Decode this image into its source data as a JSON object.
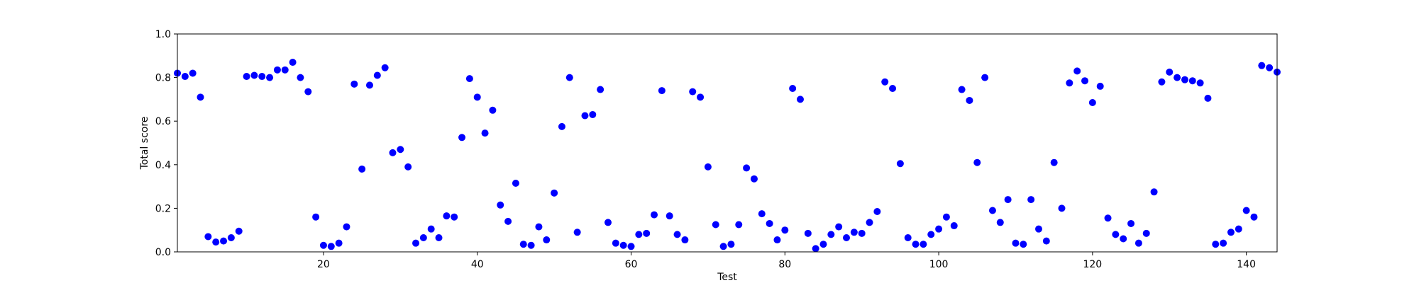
{
  "chart_data": {
    "type": "scatter",
    "xlabel": "Test",
    "ylabel": "Total score",
    "xlim": [
      1,
      144
    ],
    "ylim": [
      0.0,
      1.0
    ],
    "x_ticks": [
      20,
      40,
      60,
      80,
      100,
      120,
      140
    ],
    "x_tick_labels": [
      "20",
      "40",
      "60",
      "80",
      "100",
      "120",
      "140"
    ],
    "y_ticks": [
      0.0,
      0.2,
      0.4,
      0.6,
      0.8,
      1.0
    ],
    "y_tick_labels": [
      "0.0",
      "0.2",
      "0.4",
      "0.6",
      "0.8",
      "1.0"
    ],
    "grid": false,
    "marker_color": "#0000ff",
    "series": [
      {
        "x": [
          1,
          2,
          3,
          4,
          5,
          6,
          7,
          8,
          9,
          10,
          11,
          12,
          13,
          14,
          15,
          16,
          17,
          18,
          19,
          20,
          21,
          22,
          23,
          24,
          25,
          26,
          27,
          28,
          29,
          30,
          31,
          32,
          33,
          34,
          35,
          36,
          37,
          38,
          39,
          40,
          41,
          42,
          43,
          44,
          45,
          46,
          47,
          48,
          49,
          50,
          51,
          52,
          53,
          54,
          55,
          56,
          57,
          58,
          59,
          60,
          61,
          62,
          63,
          64,
          65,
          66,
          67,
          68,
          69,
          70,
          71,
          72,
          73,
          74,
          75,
          76,
          77,
          78,
          79,
          80,
          81,
          82,
          83,
          84,
          85,
          86,
          87,
          88,
          89,
          90,
          91,
          92,
          93,
          94,
          95,
          96,
          97,
          98,
          99,
          100,
          101,
          102,
          103,
          104,
          105,
          106,
          107,
          108,
          109,
          110,
          111,
          112,
          113,
          114,
          115,
          116,
          117,
          118,
          119,
          120,
          121,
          122,
          123,
          124,
          125,
          126,
          127,
          128,
          129,
          130,
          131,
          132,
          133,
          134,
          135,
          136,
          137,
          138,
          139,
          140,
          141,
          142,
          143,
          144
        ],
        "y": [
          0.82,
          0.805,
          0.82,
          0.71,
          0.07,
          0.045,
          0.05,
          0.065,
          0.095,
          0.805,
          0.81,
          0.805,
          0.8,
          0.835,
          0.835,
          0.87,
          0.8,
          0.735,
          0.16,
          0.03,
          0.025,
          0.04,
          0.115,
          0.77,
          0.38,
          0.765,
          0.81,
          0.845,
          0.455,
          0.47,
          0.39,
          0.04,
          0.065,
          0.105,
          0.065,
          0.165,
          0.16,
          0.525,
          0.795,
          0.71,
          0.545,
          0.65,
          0.215,
          0.14,
          0.315,
          0.035,
          0.03,
          0.115,
          0.055,
          0.27,
          0.575,
          0.8,
          0.09,
          0.625,
          0.63,
          0.745,
          0.135,
          0.04,
          0.03,
          0.025,
          0.08,
          0.085,
          0.17,
          0.74,
          0.165,
          0.08,
          0.055,
          0.735,
          0.71,
          0.39,
          0.125,
          0.025,
          0.035,
          0.125,
          0.385,
          0.335,
          0.175,
          0.13,
          0.055,
          0.1,
          0.75,
          0.7,
          0.085,
          0.015,
          0.035,
          0.08,
          0.115,
          0.065,
          0.09,
          0.085,
          0.135,
          0.185,
          0.78,
          0.75,
          0.405,
          0.065,
          0.035,
          0.035,
          0.08,
          0.105,
          0.16,
          0.12,
          0.745,
          0.695,
          0.41,
          0.8,
          0.19,
          0.135,
          0.24,
          0.04,
          0.035,
          0.24,
          0.105,
          0.05,
          0.41,
          0.2,
          0.775,
          0.83,
          0.785,
          0.685,
          0.76,
          0.155,
          0.08,
          0.06,
          0.13,
          0.04,
          0.085,
          0.275,
          0.78,
          0.825,
          0.8,
          0.79,
          0.785,
          0.775,
          0.705,
          0.035,
          0.04,
          0.09,
          0.105,
          0.19,
          0.16,
          0.855,
          0.845,
          0.825
        ]
      }
    ]
  }
}
